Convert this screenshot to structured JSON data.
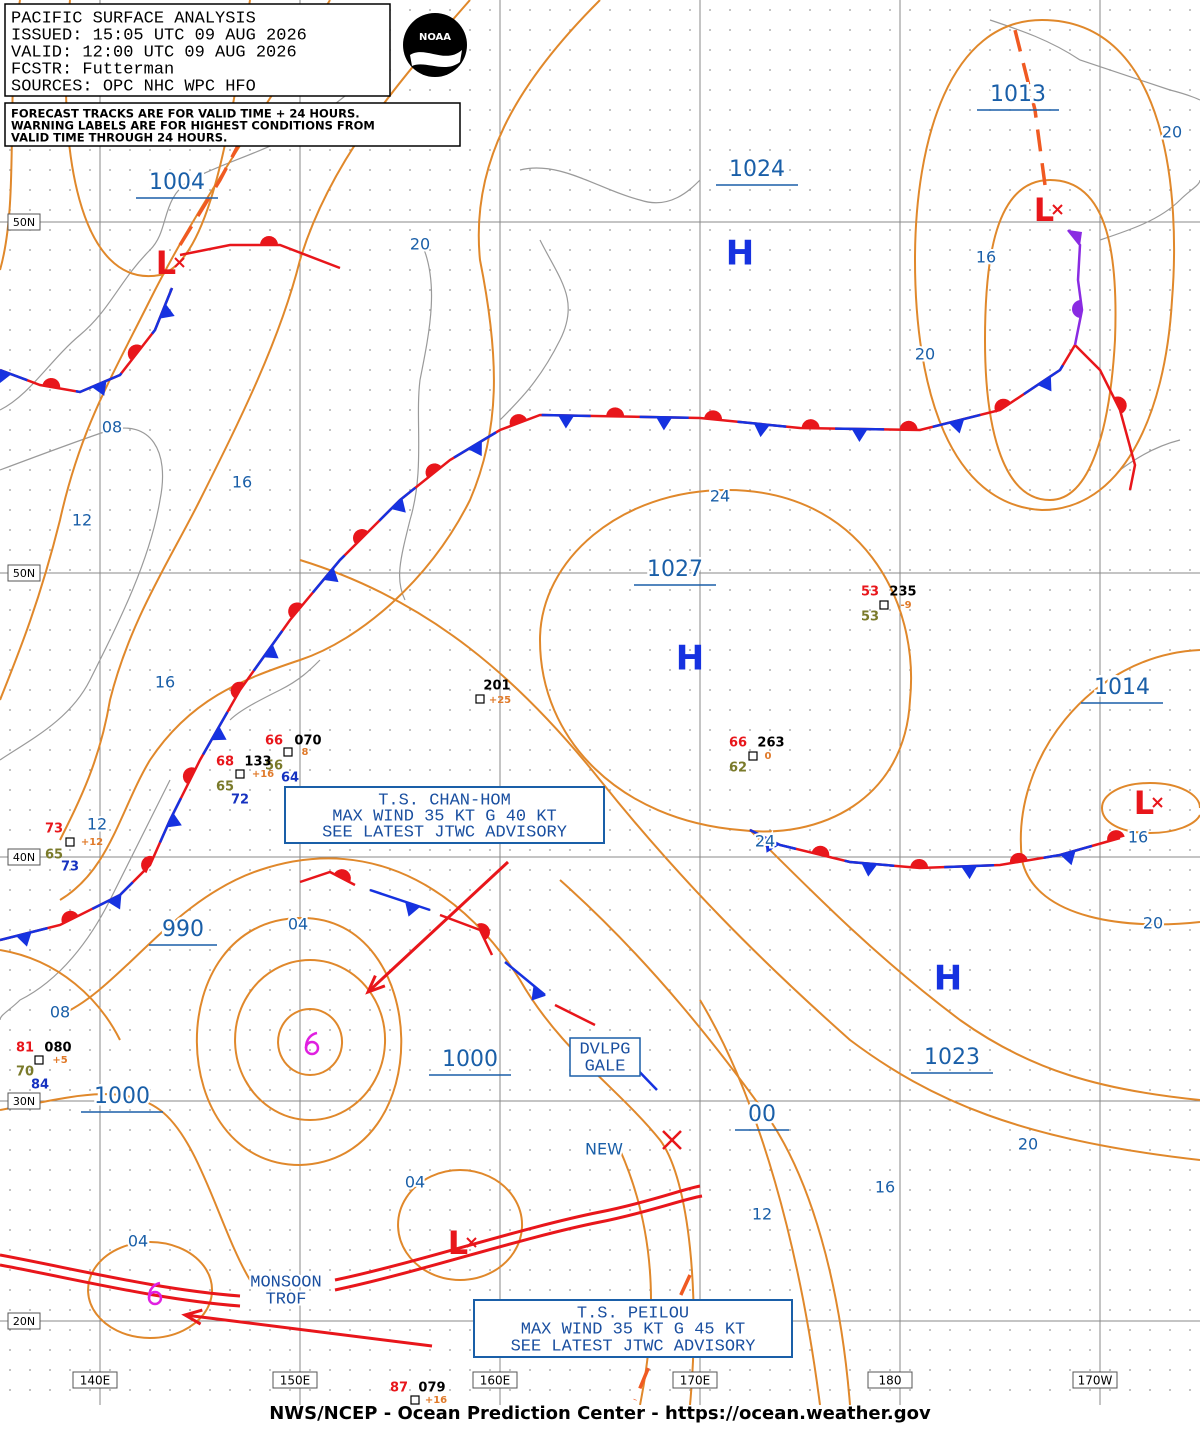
{
  "header": {
    "lines": [
      "PACIFIC SURFACE ANALYSIS",
      "ISSUED:  15:05 UTC 09 AUG 2026",
      "VALID:   12:00 UTC 09 AUG 2026",
      "FCSTR:   Futterman",
      "SOURCES: OPC NHC WPC HFO"
    ]
  },
  "notes": {
    "lines": [
      "FORECAST TRACKS ARE FOR VALID TIME + 24 HOURS.",
      "WARNING LABELS ARE FOR HIGHEST CONDITIONS FROM",
      "VALID TIME THROUGH 24 HOURS."
    ]
  },
  "logo": "NOAA",
  "latitude_labels": [
    "50N",
    "50N",
    "40N",
    "30N",
    "20N"
  ],
  "longitude_labels": [
    "140E",
    "150E",
    "160E",
    "170E",
    "180",
    "170W"
  ],
  "pressure_centers": [
    "1004",
    "1013",
    "1024",
    "1027",
    "1014",
    "990",
    "1000",
    "1000",
    "1023",
    "00"
  ],
  "highs": [
    "H",
    "H",
    "H"
  ],
  "lows": [
    "L",
    "L",
    "L",
    "L"
  ],
  "isobar_labels": [
    "20",
    "16",
    "20",
    "20",
    "08",
    "16",
    "12",
    "24",
    "16",
    "12",
    "24",
    "16",
    "20",
    "04",
    "08",
    "20",
    "16",
    "12",
    "04",
    "04"
  ],
  "advisories": [
    {
      "lines": [
        "T.S. CHAN-HOM",
        "MAX WIND 35 KT G 40 KT",
        "SEE LATEST JTWC ADVISORY"
      ]
    },
    {
      "lines": [
        "T.S. PEILOU",
        "MAX WIND 35 KT G 45 KT",
        "SEE LATEST JTWC ADVISORY"
      ]
    }
  ],
  "annotations": {
    "gale": [
      "DVLPG",
      "GALE"
    ],
    "monsoon": [
      "MONSOON",
      "TROF"
    ],
    "new": "NEW"
  },
  "station_plots": [
    [
      "201",
      "+25"
    ],
    [
      "53",
      "235",
      "53",
      "-9"
    ],
    [
      "66",
      "263",
      "62",
      "0"
    ],
    [
      "66",
      "070",
      "56",
      "8"
    ],
    [
      "68",
      "133",
      "65",
      "72",
      "64",
      "+16"
    ],
    [
      "73",
      "65",
      "73",
      "+12"
    ],
    [
      "81",
      "080",
      "70",
      "84",
      "+5"
    ],
    [
      "87",
      "079",
      "+16"
    ]
  ],
  "footer": "NWS/NCEP - Ocean Prediction Center - https://ocean.weather.gov"
}
